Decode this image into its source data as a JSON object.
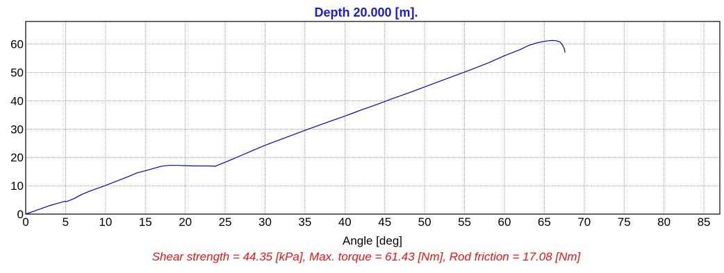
{
  "colors": {
    "title": "#1a1adb",
    "series": "#0000cc",
    "footer": "#ee1111",
    "grid": "#8a8a8a",
    "frame": "#000000",
    "background": "#ffffff"
  },
  "chart_data": {
    "type": "line",
    "title": "Depth 20.000 [m].",
    "xlabel": "Angle [deg]",
    "ylabel": "",
    "xlim": [
      0,
      87
    ],
    "ylim": [
      0,
      68
    ],
    "xticks": [
      0,
      5,
      10,
      15,
      20,
      25,
      30,
      35,
      40,
      45,
      50,
      55,
      60,
      65,
      70,
      75,
      80,
      85
    ],
    "yticks": [
      0,
      10,
      20,
      30,
      40,
      50,
      60
    ],
    "grid": true,
    "footer": "Shear strength = 44.35 [kPa], Max. torque = 61.43 [Nm], Rod friction = 17.08 [Nm]",
    "series": [
      {
        "x": [
          0,
          1,
          2,
          3,
          4,
          4.9,
          5.1,
          6,
          7,
          8,
          9,
          10,
          11,
          12,
          13,
          14,
          15,
          16,
          17,
          18,
          19,
          20,
          21,
          22,
          23,
          23.8,
          24,
          25,
          26,
          27,
          28,
          29,
          30,
          32,
          34,
          36,
          38,
          40,
          42,
          44,
          46,
          48,
          50,
          52,
          54,
          56,
          58,
          60,
          62,
          63,
          64,
          65,
          65.5,
          66,
          66.5,
          67,
          67.3,
          67.5,
          67.6
        ],
        "y": [
          0,
          1,
          2,
          3,
          3.8,
          4.5,
          4.4,
          5.4,
          6.9,
          8.1,
          9.1,
          10.1,
          11.2,
          12.3,
          13.4,
          14.6,
          15.3,
          16.1,
          16.9,
          17.2,
          17.2,
          17.1,
          17.0,
          17.0,
          17.0,
          16.9,
          17.2,
          18.3,
          19.5,
          20.7,
          21.9,
          23.1,
          24.3,
          26.4,
          28.5,
          30.6,
          32.6,
          34.6,
          36.7,
          38.7,
          40.8,
          42.8,
          44.9,
          47.0,
          49.1,
          51.2,
          53.4,
          55.9,
          58.1,
          59.5,
          60.4,
          61.0,
          61.2,
          61.3,
          61.2,
          60.7,
          59.6,
          58.4,
          57.0
        ]
      }
    ]
  }
}
